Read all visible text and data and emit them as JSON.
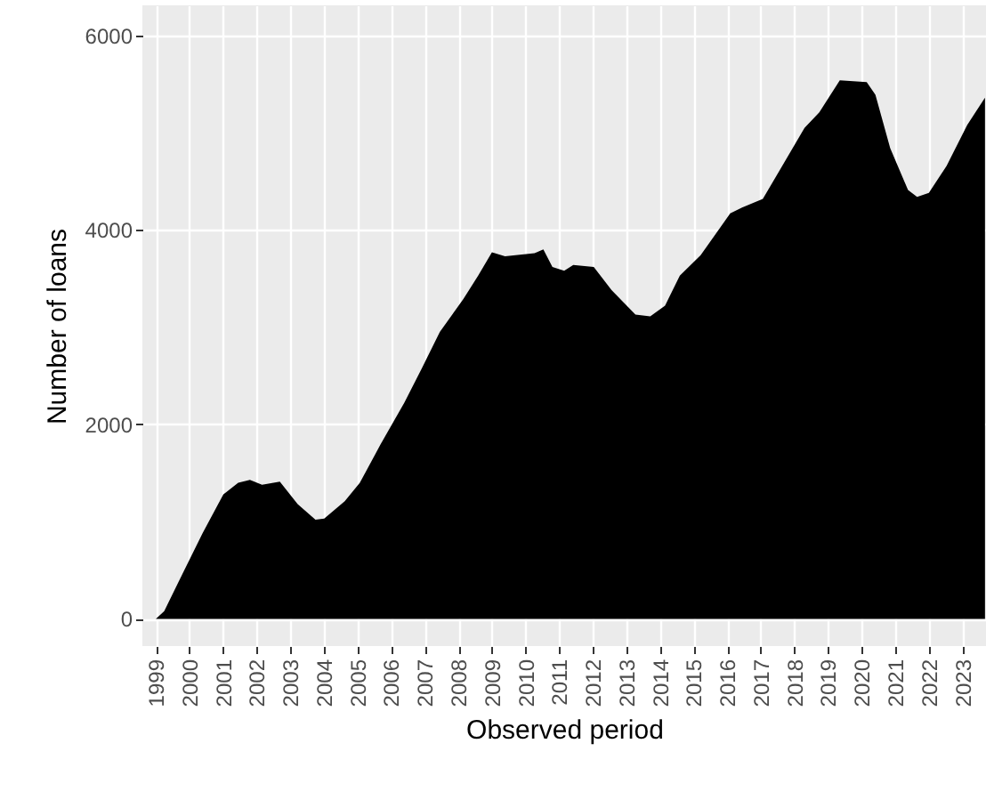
{
  "chart_data": {
    "type": "area",
    "xlabel": "Observed period",
    "ylabel": "Number of loans",
    "x": [
      1999.0,
      1999.25,
      1999.69,
      2000.39,
      2001.01,
      2001.45,
      2001.8,
      2002.16,
      2002.69,
      2003.22,
      2003.75,
      2004.01,
      2004.62,
      2005.07,
      2005.68,
      2006.39,
      2006.92,
      2007.45,
      2008.15,
      2008.59,
      2009.0,
      2009.39,
      2010.27,
      2010.53,
      2010.8,
      2011.15,
      2011.42,
      2012.03,
      2012.56,
      2013.27,
      2013.71,
      2014.15,
      2014.59,
      2015.21,
      2016.09,
      2016.44,
      2017.06,
      2017.59,
      2018.3,
      2018.74,
      2019.35,
      2020.15,
      2020.41,
      2020.85,
      2021.38,
      2021.65,
      2022.0,
      2022.53,
      2023.14,
      2023.67
    ],
    "series": [
      {
        "color": "#000000",
        "values": [
          0,
          80,
          390,
          880,
          1280,
          1400,
          1430,
          1380,
          1410,
          1180,
          1020,
          1030,
          1210,
          1400,
          1790,
          2220,
          2580,
          2950,
          3290,
          3530,
          3770,
          3730,
          3760,
          3800,
          3620,
          3580,
          3640,
          3620,
          3380,
          3130,
          3110,
          3220,
          3530,
          3740,
          4170,
          4230,
          4320,
          4630,
          5050,
          5210,
          5540,
          5520,
          5390,
          4840,
          4410,
          4340,
          4380,
          4660,
          5080,
          5360
        ]
      }
    ],
    "xlim": [
      1998.6,
      2023.7
    ],
    "xticks": [
      1999,
      2000,
      2001,
      2002,
      2003,
      2004,
      2005,
      2006,
      2007,
      2008,
      2009,
      2010,
      2011,
      2012,
      2013,
      2014,
      2015,
      2016,
      2017,
      2018,
      2019,
      2020,
      2021,
      2022,
      2023
    ],
    "ylim": [
      -280,
      6310
    ],
    "yticks": [
      0,
      2000,
      4000,
      6000
    ],
    "grid": true
  }
}
